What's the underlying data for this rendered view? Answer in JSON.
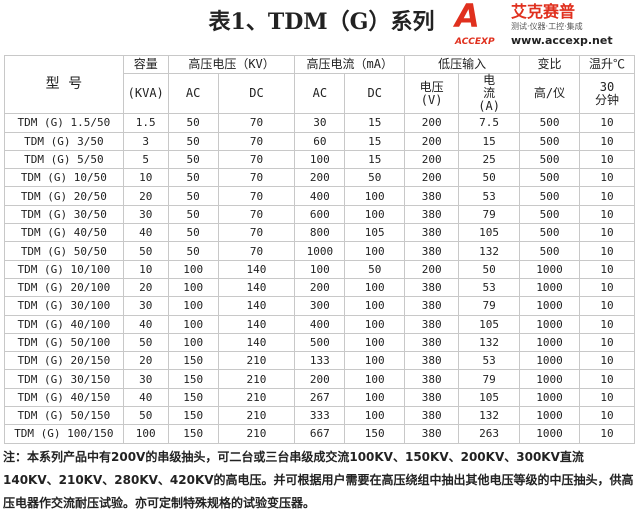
{
  "title": "表1、TDM（G）系列",
  "header": {
    "model": "型  号",
    "capacity": "容量",
    "capacity_unit": "(KVA)",
    "hv_voltage": "高压电压（KV）",
    "hv_current": "高压电流（mA）",
    "lv_input": "低压输入",
    "ratio": "变比",
    "temp_rise": "温升℃",
    "ac": "AC",
    "dc": "DC",
    "lv_voltage": "电压(V)",
    "lv_current": "电流(A)",
    "ratio_sub": "高/仪",
    "temp_sub": "30分钟"
  },
  "rows": [
    [
      "TDM (G) 1.5/50",
      "1.5",
      "50",
      "70",
      "30",
      "15",
      "200",
      "7.5",
      "500",
      "10"
    ],
    [
      "TDM (G) 3/50",
      "3",
      "50",
      "70",
      "60",
      "15",
      "200",
      "15",
      "500",
      "10"
    ],
    [
      "TDM (G) 5/50",
      "5",
      "50",
      "70",
      "100",
      "15",
      "200",
      "25",
      "500",
      "10"
    ],
    [
      "TDM (G) 10/50",
      "10",
      "50",
      "70",
      "200",
      "50",
      "200",
      "50",
      "500",
      "10"
    ],
    [
      "TDM (G) 20/50",
      "20",
      "50",
      "70",
      "400",
      "100",
      "380",
      "53",
      "500",
      "10"
    ],
    [
      "TDM (G) 30/50",
      "30",
      "50",
      "70",
      "600",
      "100",
      "380",
      "79",
      "500",
      "10"
    ],
    [
      "TDM (G) 40/50",
      "40",
      "50",
      "70",
      "800",
      "105",
      "380",
      "105",
      "500",
      "10"
    ],
    [
      "TDM (G) 50/50",
      "50",
      "50",
      "70",
      "1000",
      "100",
      "380",
      "132",
      "500",
      "10"
    ],
    [
      "TDM (G) 10/100",
      "10",
      "100",
      "140",
      "100",
      "50",
      "200",
      "50",
      "1000",
      "10"
    ],
    [
      "TDM (G) 20/100",
      "20",
      "100",
      "140",
      "200",
      "100",
      "380",
      "53",
      "1000",
      "10"
    ],
    [
      "TDM (G) 30/100",
      "30",
      "100",
      "140",
      "300",
      "100",
      "380",
      "79",
      "1000",
      "10"
    ],
    [
      "TDM (G) 40/100",
      "40",
      "100",
      "140",
      "400",
      "100",
      "380",
      "105",
      "1000",
      "10"
    ],
    [
      "TDM (G) 50/100",
      "50",
      "100",
      "140",
      "500",
      "100",
      "380",
      "132",
      "1000",
      "10"
    ],
    [
      "TDM (G) 20/150",
      "20",
      "150",
      "210",
      "133",
      "100",
      "380",
      "53",
      "1000",
      "10"
    ],
    [
      "TDM (G) 30/150",
      "30",
      "150",
      "210",
      "200",
      "100",
      "380",
      "79",
      "1000",
      "10"
    ],
    [
      "TDM (G) 40/150",
      "40",
      "150",
      "210",
      "267",
      "100",
      "380",
      "105",
      "1000",
      "10"
    ],
    [
      "TDM (G) 50/150",
      "50",
      "150",
      "210",
      "333",
      "100",
      "380",
      "132",
      "1000",
      "10"
    ],
    [
      "TDM (G) 100/150",
      "100",
      "150",
      "210",
      "667",
      "150",
      "380",
      "263",
      "1000",
      "10"
    ]
  ],
  "note": "注：本系列产品中有200V的串级抽头，可二台或三台串级成交流100KV、150KV、200KV、300KV直流140KV、210KV、280KV、420KV的高电压。并可根据用户需要在高压绕组中抽出其他电压等级的中压抽头，供高压电器作交流耐压试验。亦可定制特殊规格的试验变压器。",
  "watermark": {
    "brand": "艾克赛普",
    "tagline": "测试·仪器·工控·集成",
    "url": "www.accexp.net",
    "logo_text": "ACCEXP"
  }
}
